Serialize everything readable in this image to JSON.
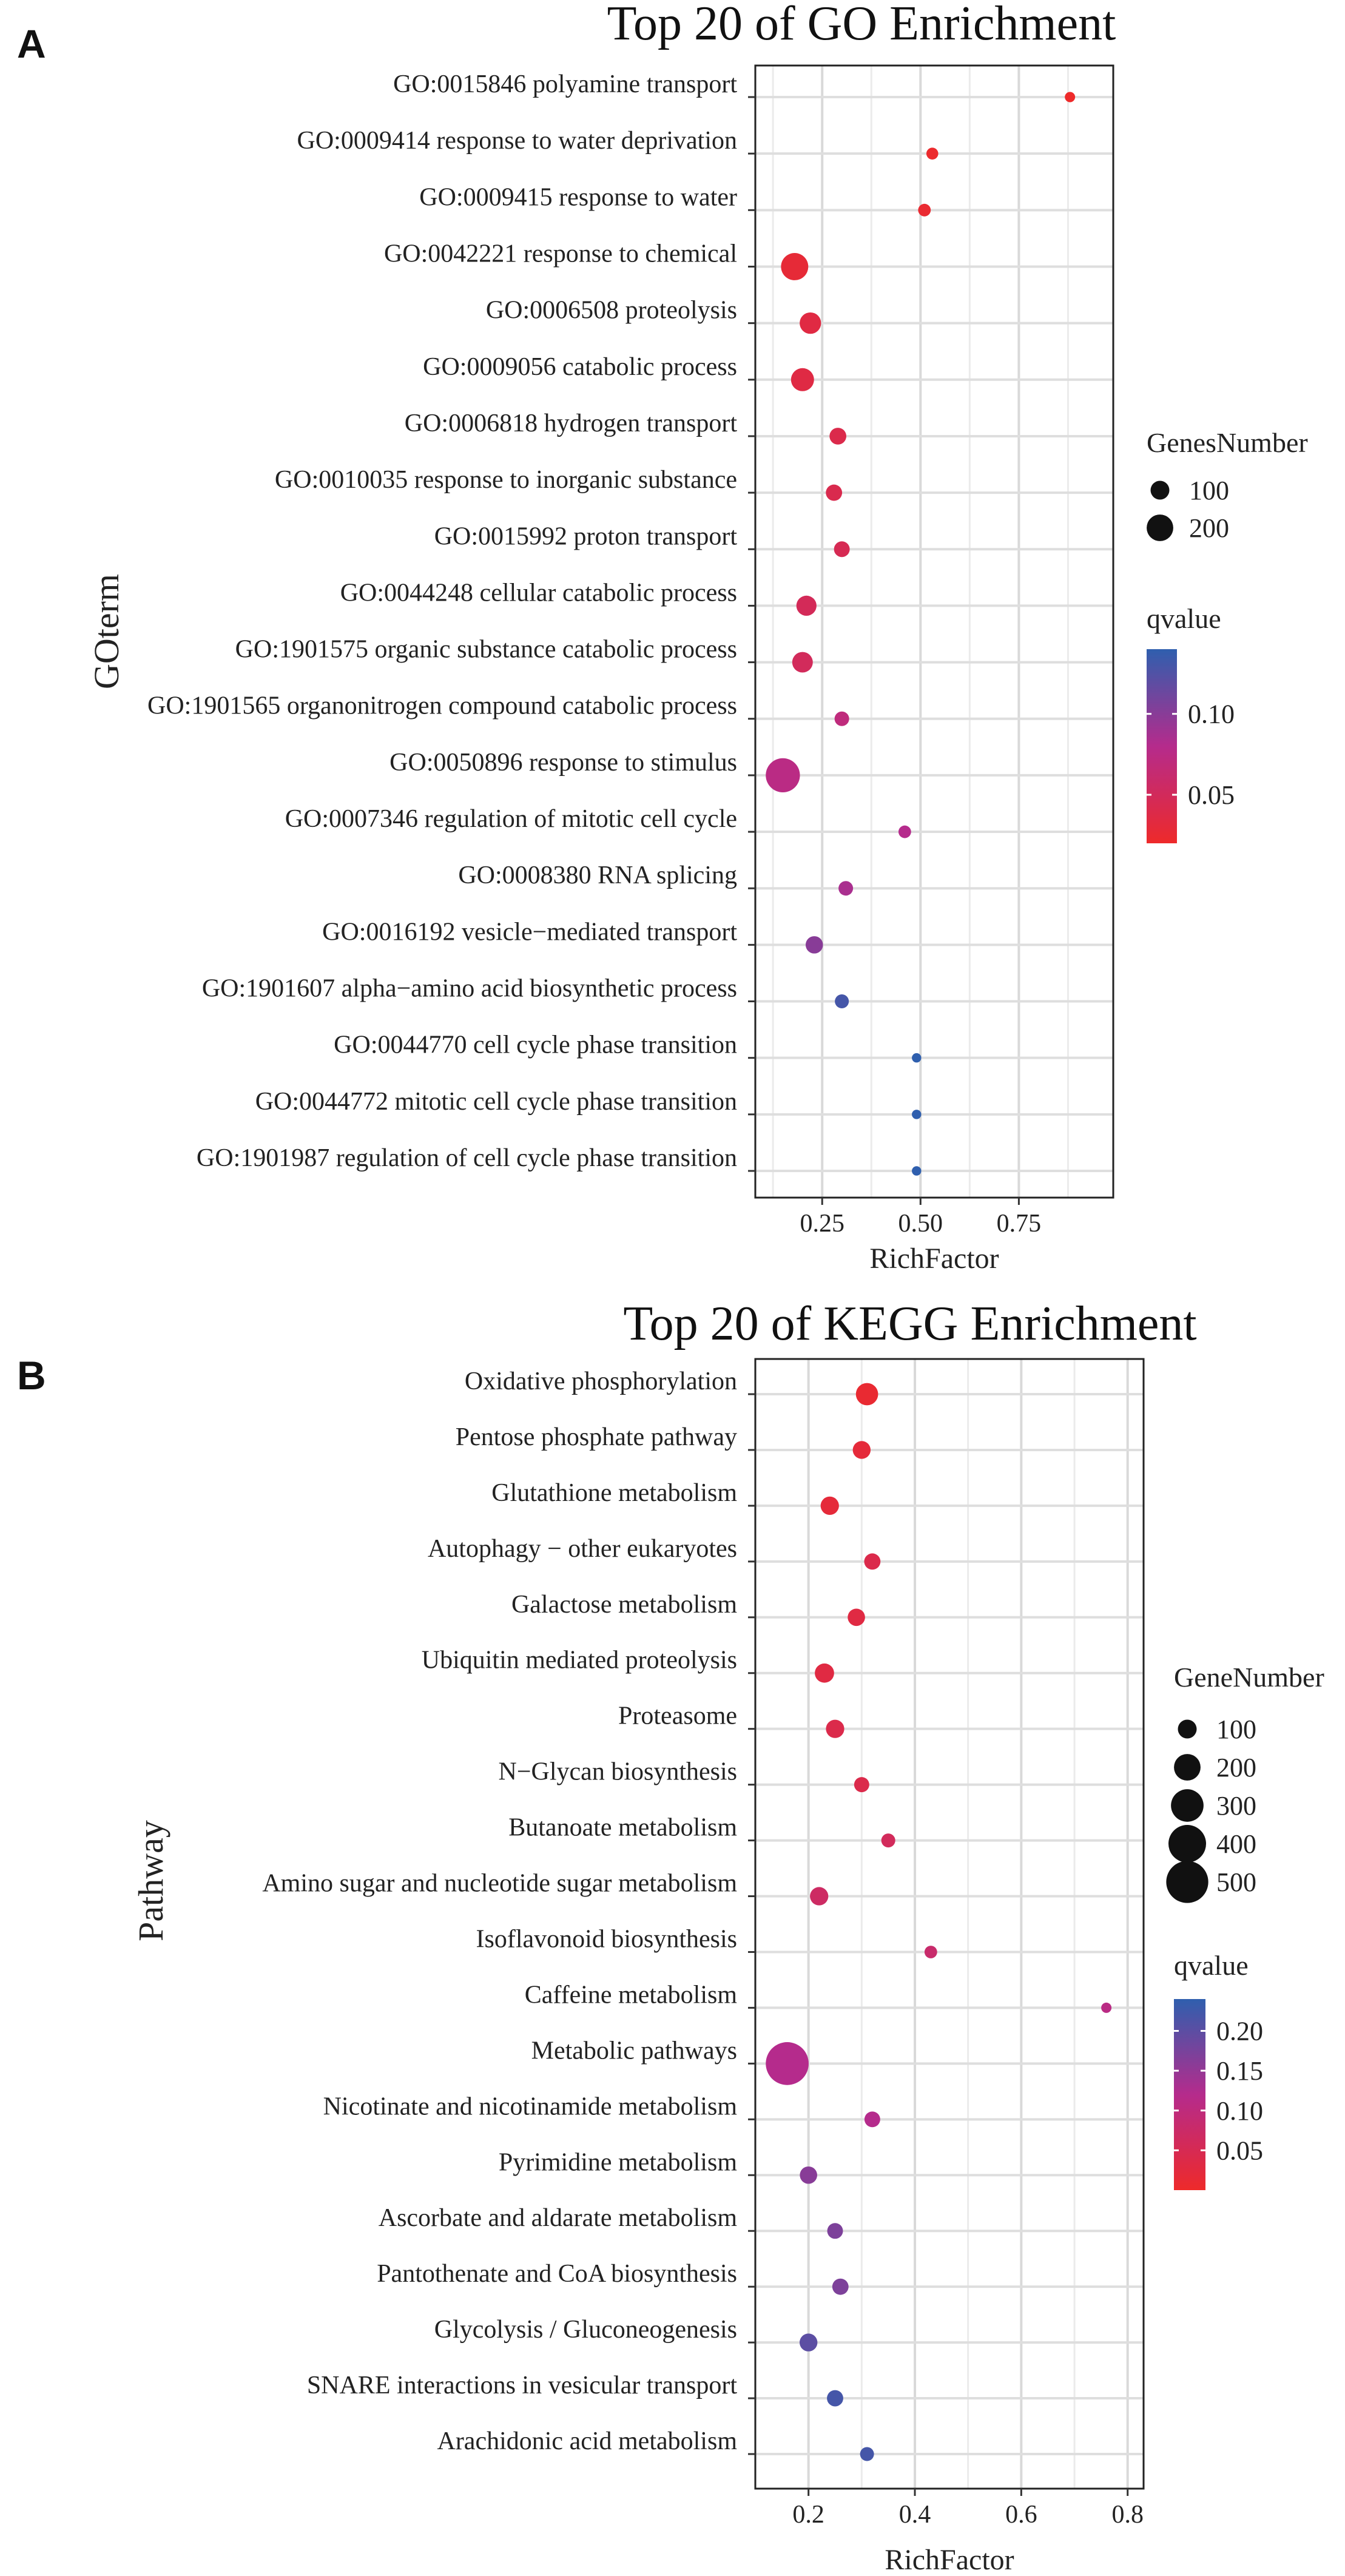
{
  "figure": {
    "panels": [
      "A",
      "B"
    ]
  },
  "chart_data": [
    {
      "type": "scatter",
      "panel_label": "A",
      "title": "Top 20 of GO Enrichment",
      "xlabel": "RichFactor",
      "ylabel": "GOterm",
      "xlim": [
        0.08,
        0.99
      ],
      "xticks": [
        0.25,
        0.5,
        0.75
      ],
      "xtick_labels": [
        "0.25",
        "0.50",
        "0.75"
      ],
      "grid": true,
      "size_legend": {
        "title": "GenesNumber",
        "values": [
          100,
          200
        ],
        "labels": [
          "100",
          "200"
        ]
      },
      "color_legend": {
        "title": "qvalue",
        "range": [
          0.02,
          0.14
        ],
        "ticks": [
          0.1,
          0.05
        ],
        "tick_labels": [
          "0.10",
          "0.05"
        ],
        "low_color": "#ee2a2a",
        "mid_color": "#b52b8c",
        "high_color": "#2f5fae"
      },
      "categories": [
        "GO:0015846 polyamine transport",
        "GO:0009414 response to water deprivation",
        "GO:0009415 response to water",
        "GO:0042221 response to chemical",
        "GO:0006508 proteolysis",
        "GO:0009056 catabolic process",
        "GO:0006818 hydrogen transport",
        "GO:0010035 response to inorganic substance",
        "GO:0015992 proton transport",
        "GO:0044248 cellular catabolic process",
        "GO:1901575 organic substance catabolic process",
        "GO:1901565 organonitrogen compound catabolic process",
        "GO:0050896 response to stimulus",
        "GO:0007346 regulation of mitotic cell cycle",
        "GO:0008380 RNA splicing",
        "GO:0016192 vesicle−mediated transport",
        "GO:1901607 alpha−amino acid biosynthetic process",
        "GO:0044770 cell cycle phase transition",
        "GO:0044772 mitotic cell cycle phase transition",
        "GO:1901987 regulation of cell cycle phase transition"
      ],
      "x": [
        0.88,
        0.53,
        0.51,
        0.18,
        0.22,
        0.2,
        0.29,
        0.28,
        0.3,
        0.21,
        0.2,
        0.3,
        0.15,
        0.46,
        0.31,
        0.23,
        0.3,
        0.49,
        0.49,
        0.49
      ],
      "size": [
        30,
        40,
        45,
        210,
        130,
        150,
        80,
        75,
        70,
        115,
        120,
        60,
        330,
        45,
        60,
        85,
        55,
        25,
        25,
        25
      ],
      "qvalue": [
        0.02,
        0.022,
        0.024,
        0.028,
        0.035,
        0.036,
        0.04,
        0.042,
        0.045,
        0.048,
        0.05,
        0.07,
        0.075,
        0.08,
        0.085,
        0.1,
        0.13,
        0.14,
        0.14,
        0.14
      ]
    },
    {
      "type": "scatter",
      "panel_label": "B",
      "title": "Top 20 of KEGG Enrichment",
      "xlabel": "RichFactor",
      "ylabel": "Pathway",
      "xlim": [
        0.1,
        0.83
      ],
      "xticks": [
        0.2,
        0.4,
        0.6,
        0.8
      ],
      "xtick_labels": [
        "0.2",
        "0.4",
        "0.6",
        "0.8"
      ],
      "grid": true,
      "size_legend": {
        "title": "GeneNumber",
        "values": [
          100,
          200,
          300,
          400,
          500
        ],
        "labels": [
          "100",
          "200",
          "300",
          "400",
          "500"
        ]
      },
      "color_legend": {
        "title": "qvalue",
        "range": [
          0.0,
          0.24
        ],
        "ticks": [
          0.2,
          0.15,
          0.1,
          0.05
        ],
        "tick_labels": [
          "0.20",
          "0.15",
          "0.10",
          "0.05"
        ],
        "low_color": "#ee2a2a",
        "mid_color": "#b52b8c",
        "high_color": "#2f5fae"
      },
      "categories": [
        "Oxidative phosphorylation",
        "Pentose phosphate pathway",
        "Glutathione metabolism",
        "Autophagy − other eukaryotes",
        "Galactose metabolism",
        "Ubiquitin mediated proteolysis",
        "Proteasome",
        "N−Glycan biosynthesis",
        "Butanoate metabolism",
        "Amino sugar and nucleotide sugar metabolism",
        "Isoflavonoid biosynthesis",
        "Caffeine metabolism",
        "Metabolic pathways",
        "Nicotinate and nicotinamide metabolism",
        "Pyrimidine metabolism",
        "Ascorbate and aldarate metabolism",
        "Pantothenate and CoA biosynthesis",
        "Glycolysis / Gluconeogenesis",
        "SNARE interactions in vesicular transport",
        "Arachidonic acid metabolism"
      ],
      "x": [
        0.31,
        0.3,
        0.24,
        0.32,
        0.29,
        0.23,
        0.25,
        0.3,
        0.35,
        0.22,
        0.43,
        0.76,
        0.16,
        0.32,
        0.2,
        0.25,
        0.26,
        0.2,
        0.25,
        0.31
      ],
      "size": [
        140,
        90,
        95,
        75,
        85,
        105,
        95,
        65,
        55,
        95,
        45,
        30,
        520,
        70,
        85,
        70,
        75,
        90,
        75,
        55
      ],
      "qvalue": [
        0.01,
        0.02,
        0.02,
        0.04,
        0.03,
        0.03,
        0.04,
        0.04,
        0.06,
        0.07,
        0.08,
        0.11,
        0.12,
        0.12,
        0.16,
        0.17,
        0.17,
        0.2,
        0.22,
        0.22
      ]
    }
  ]
}
